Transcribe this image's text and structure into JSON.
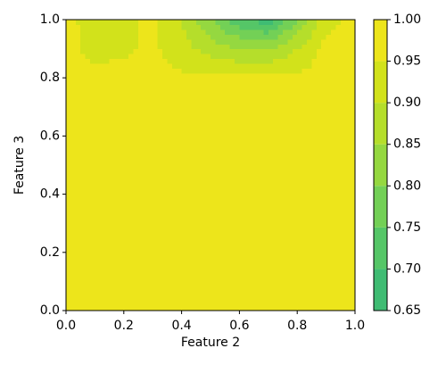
{
  "chart_data": {
    "type": "contour",
    "xlabel": "Feature 2",
    "ylabel": "Feature 3",
    "x": [
      0,
      0.1,
      0.2,
      0.3,
      0.4,
      0.5,
      0.6,
      0.7,
      0.8,
      0.9,
      1.0
    ],
    "y": [
      0,
      0.1,
      0.2,
      0.3,
      0.4,
      0.5,
      0.6,
      0.7,
      0.8,
      0.9,
      1.0
    ],
    "z": [
      [
        0.99,
        0.99,
        0.99,
        0.99,
        0.99,
        0.99,
        0.99,
        0.99,
        0.99,
        0.99,
        0.99
      ],
      [
        0.99,
        0.99,
        0.99,
        0.99,
        0.99,
        0.99,
        0.99,
        0.99,
        0.99,
        0.99,
        0.99
      ],
      [
        0.99,
        0.99,
        0.99,
        0.99,
        0.99,
        0.99,
        0.99,
        0.99,
        0.99,
        0.99,
        0.99
      ],
      [
        0.99,
        0.99,
        0.99,
        0.99,
        0.99,
        0.99,
        0.99,
        0.99,
        0.99,
        0.99,
        0.99
      ],
      [
        0.99,
        0.99,
        0.99,
        0.99,
        0.99,
        0.99,
        0.99,
        0.99,
        0.99,
        0.99,
        0.99
      ],
      [
        0.99,
        0.99,
        0.99,
        0.99,
        0.99,
        0.99,
        0.99,
        0.99,
        0.99,
        0.99,
        0.99
      ],
      [
        0.99,
        0.99,
        0.99,
        0.99,
        0.99,
        0.99,
        0.99,
        0.99,
        0.99,
        0.99,
        0.99
      ],
      [
        0.99,
        0.99,
        0.99,
        0.99,
        0.98,
        0.98,
        0.98,
        0.98,
        0.98,
        0.99,
        0.99
      ],
      [
        0.98,
        0.97,
        0.97,
        0.97,
        0.96,
        0.96,
        0.96,
        0.96,
        0.96,
        0.97,
        0.98
      ],
      [
        0.97,
        0.93,
        0.94,
        0.96,
        0.92,
        0.88,
        0.85,
        0.85,
        0.9,
        0.97,
        0.98
      ],
      [
        0.97,
        0.92,
        0.94,
        0.96,
        0.9,
        0.8,
        0.72,
        0.67,
        0.8,
        0.93,
        0.97
      ]
    ],
    "levels": [
      0.65,
      0.7,
      0.75,
      0.8,
      0.85,
      0.9,
      0.95,
      1.0
    ],
    "colors": [
      "#3fbc73",
      "#55c667",
      "#73d056",
      "#95d840",
      "#b5de2b",
      "#d2e21b",
      "#ede51b"
    ],
    "xlim": [
      0,
      1
    ],
    "ylim": [
      0,
      1
    ],
    "xticks": [
      {
        "value": 0,
        "label": "0.0"
      },
      0.2,
      0.4,
      0.6,
      0.8,
      {
        "value": 1,
        "label": "1.0"
      }
    ],
    "yticks": [
      {
        "value": 0,
        "label": "0.0"
      },
      0.2,
      0.4,
      0.6,
      0.8,
      {
        "value": 1,
        "label": "1.0"
      }
    ],
    "colorbar_ticks": [
      0.65,
      {
        "value": 0.7,
        "label": "0.70"
      },
      0.75,
      {
        "value": 0.8,
        "label": "0.80"
      },
      0.85,
      {
        "value": 0.9,
        "label": "0.90"
      },
      0.95,
      {
        "value": 1,
        "label": "1.00"
      }
    ]
  }
}
